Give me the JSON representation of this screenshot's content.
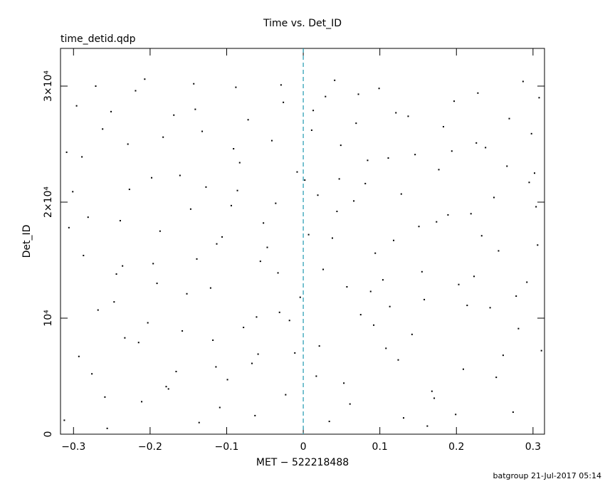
{
  "chart_data": {
    "type": "scatter",
    "title": "Time vs. Det_ID",
    "subtitle": "time_detid.qdp",
    "x_label": "MET − 522218488",
    "y_label": "Det_ID",
    "footer": "batgroup 21-Jul-2017 05:14",
    "color": "#000000",
    "xlim": [
      -0.317,
      0.315
    ],
    "ylim": [
      0,
      33250
    ],
    "xticks": [
      {
        "value": -0.3,
        "label": "−0.3"
      },
      {
        "value": -0.2,
        "label": "−0.2"
      },
      {
        "value": -0.1,
        "label": "−0.1"
      },
      0,
      0.1,
      0.2,
      0.3
    ],
    "yticks": [
      0,
      {
        "value": 10000,
        "label": "10⁴"
      },
      {
        "value": 20000,
        "label": "2×10⁴"
      },
      {
        "value": 30000,
        "label": "3×10⁴"
      }
    ],
    "vline": {
      "x": 0,
      "color": "#1f9ab0",
      "dashed": true
    },
    "x": [
      -0.312,
      -0.287,
      -0.251,
      -0.233,
      -0.198,
      -0.176,
      -0.143,
      -0.121,
      -0.094,
      -0.067,
      -0.041,
      -0.018,
      0.007,
      0.029,
      0.053,
      0.081,
      0.104,
      0.137,
      0.162,
      0.189,
      0.214,
      0.238,
      0.261,
      0.287,
      0.306,
      -0.301,
      -0.276,
      -0.244,
      -0.219,
      -0.187,
      -0.158,
      -0.132,
      -0.109,
      -0.083,
      -0.056,
      -0.029,
      -0.004,
      0.021,
      0.044,
      0.069,
      0.092,
      0.118,
      0.146,
      0.171,
      0.197,
      0.223,
      0.249,
      0.274,
      0.298,
      0.311,
      -0.296,
      -0.268,
      -0.239,
      -0.211,
      -0.183,
      -0.152,
      -0.127,
      -0.099,
      -0.072,
      -0.047,
      -0.023,
      0.002,
      0.026,
      0.049,
      0.075,
      0.099,
      0.124,
      0.151,
      0.177,
      0.203,
      0.228,
      0.255,
      0.281,
      0.304,
      -0.309,
      -0.281,
      -0.256,
      -0.227,
      -0.203,
      -0.169,
      -0.139,
      -0.114,
      -0.088,
      -0.061,
      -0.036,
      -0.011,
      0.013,
      0.038,
      0.061,
      0.088,
      0.111,
      0.131,
      0.158,
      0.183,
      0.209,
      0.233,
      0.266,
      0.292,
      0.308,
      -0.293,
      -0.262,
      -0.236,
      -0.207,
      -0.179,
      -0.147,
      -0.118,
      -0.091,
      -0.063,
      -0.033,
      -0.008,
      0.017,
      0.041,
      0.066,
      0.094,
      0.121,
      0.142,
      0.168,
      0.194,
      0.219,
      0.244,
      0.269,
      0.295,
      -0.306,
      -0.271,
      -0.247,
      -0.215,
      -0.191,
      -0.161,
      -0.136,
      -0.106,
      -0.078,
      -0.052,
      -0.026,
      0.011,
      0.034,
      0.057,
      0.084,
      0.108,
      0.128,
      0.155,
      0.174,
      0.199,
      0.226,
      0.252,
      0.278,
      0.302,
      -0.289,
      -0.259,
      -0.229,
      -0.196,
      -0.166,
      -0.141,
      -0.113,
      -0.086,
      -0.059,
      -0.031,
      0.019,
      0.047,
      0.072,
      0.113
    ],
    "values": [
      1200,
      15400,
      27800,
      8300,
      22100,
      3900,
      30200,
      12600,
      19700,
      6100,
      25300,
      9800,
      17200,
      29100,
      4400,
      21600,
      13300,
      27400,
      700,
      18900,
      11100,
      24700,
      6800,
      30400,
      16300,
      20900,
      5200,
      13800,
      29600,
      17500,
      8900,
      26100,
      2300,
      23400,
      14900,
      30100,
      11800,
      7600,
      19200,
      26800,
      9400,
      16700,
      24100,
      3100,
      28700,
      13600,
      20400,
      1900,
      25900,
      7200,
      28300,
      10700,
      18400,
      2800,
      25600,
      12100,
      21300,
      4700,
      27100,
      16100,
      3400,
      21900,
      14200,
      24900,
      10300,
      29800,
      6400,
      17900,
      22800,
      12900,
      29400,
      15800,
      9100,
      19600,
      24300,
      18700,
      500,
      21100,
      9600,
      27500,
      15100,
      5800,
      29900,
      10100,
      19900,
      7000,
      27900,
      16900,
      2600,
      12300,
      23800,
      1400,
      11600,
      26500,
      5600,
      17100,
      23100,
      13100,
      29000,
      6700,
      26300,
      14500,
      30600,
      4100,
      19400,
      8100,
      24600,
      1600,
      13900,
      22600,
      5000,
      30500,
      20100,
      15600,
      27700,
      8600,
      3700,
      24400,
      19000,
      10900,
      27200,
      21700,
      17800,
      30000,
      11400,
      7900,
      13000,
      22300,
      1000,
      17000,
      9200,
      18200,
      28600,
      26200,
      1100,
      12700,
      23600,
      7400,
      20700,
      14000,
      18300,
      1700,
      25100,
      4900,
      11900,
      22500,
      23900,
      3200,
      25000,
      14700,
      5400,
      28000,
      16400,
      21000,
      6900,
      10500,
      20600,
      22000,
      29300,
      11000
    ]
  }
}
